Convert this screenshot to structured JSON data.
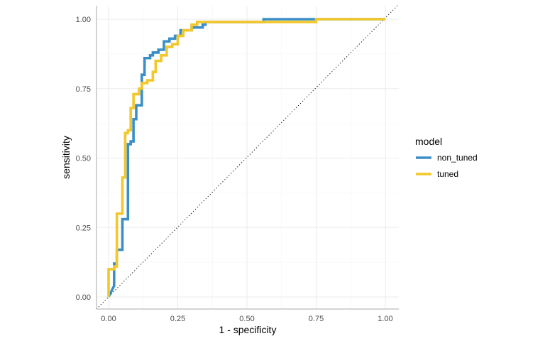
{
  "chart_data": {
    "type": "line",
    "title": "",
    "xlabel": "1 - specificity",
    "ylabel": "sensitivity",
    "xlim": [
      0,
      1
    ],
    "ylim": [
      0,
      1
    ],
    "x_ticks": [
      "0.00",
      "0.25",
      "0.50",
      "0.75",
      "1.00"
    ],
    "y_ticks": [
      "0.00",
      "0.25",
      "0.50",
      "0.75",
      "1.00"
    ],
    "grid": true,
    "legend": {
      "title": "model",
      "placement": "right"
    },
    "reference_line": {
      "type": "diagonal",
      "style": "dotted",
      "color": "#000000"
    },
    "series": [
      {
        "name": "non_tuned",
        "color": "#3A8FC8",
        "points": [
          [
            0,
            0
          ],
          [
            0.01,
            0.02
          ],
          [
            0.02,
            0.04
          ],
          [
            0.02,
            0.12
          ],
          [
            0.03,
            0.12
          ],
          [
            0.03,
            0.17
          ],
          [
            0.05,
            0.17
          ],
          [
            0.05,
            0.28
          ],
          [
            0.07,
            0.28
          ],
          [
            0.07,
            0.55
          ],
          [
            0.08,
            0.55
          ],
          [
            0.08,
            0.56
          ],
          [
            0.09,
            0.56
          ],
          [
            0.09,
            0.64
          ],
          [
            0.1,
            0.64
          ],
          [
            0.1,
            0.69
          ],
          [
            0.12,
            0.69
          ],
          [
            0.12,
            0.8
          ],
          [
            0.13,
            0.8
          ],
          [
            0.13,
            0.86
          ],
          [
            0.15,
            0.86
          ],
          [
            0.15,
            0.87
          ],
          [
            0.16,
            0.87
          ],
          [
            0.16,
            0.88
          ],
          [
            0.18,
            0.88
          ],
          [
            0.18,
            0.89
          ],
          [
            0.2,
            0.89
          ],
          [
            0.2,
            0.92
          ],
          [
            0.22,
            0.92
          ],
          [
            0.22,
            0.93
          ],
          [
            0.24,
            0.93
          ],
          [
            0.24,
            0.94
          ],
          [
            0.26,
            0.94
          ],
          [
            0.26,
            0.96
          ],
          [
            0.3,
            0.96
          ],
          [
            0.3,
            0.97
          ],
          [
            0.34,
            0.97
          ],
          [
            0.34,
            0.98
          ],
          [
            0.35,
            0.98
          ],
          [
            0.35,
            0.99
          ],
          [
            0.56,
            0.99
          ],
          [
            0.56,
            1.0
          ],
          [
            1.0,
            1.0
          ]
        ]
      },
      {
        "name": "tuned",
        "color": "#F2C72B",
        "points": [
          [
            0,
            0
          ],
          [
            0,
            0.1
          ],
          [
            0.02,
            0.1
          ],
          [
            0.02,
            0.11
          ],
          [
            0.03,
            0.11
          ],
          [
            0.03,
            0.3
          ],
          [
            0.05,
            0.3
          ],
          [
            0.05,
            0.43
          ],
          [
            0.06,
            0.43
          ],
          [
            0.06,
            0.59
          ],
          [
            0.07,
            0.59
          ],
          [
            0.07,
            0.6
          ],
          [
            0.08,
            0.6
          ],
          [
            0.08,
            0.68
          ],
          [
            0.09,
            0.68
          ],
          [
            0.09,
            0.73
          ],
          [
            0.11,
            0.73
          ],
          [
            0.11,
            0.75
          ],
          [
            0.12,
            0.75
          ],
          [
            0.12,
            0.77
          ],
          [
            0.14,
            0.77
          ],
          [
            0.14,
            0.78
          ],
          [
            0.16,
            0.78
          ],
          [
            0.16,
            0.81
          ],
          [
            0.17,
            0.81
          ],
          [
            0.17,
            0.85
          ],
          [
            0.19,
            0.85
          ],
          [
            0.19,
            0.87
          ],
          [
            0.21,
            0.87
          ],
          [
            0.21,
            0.9
          ],
          [
            0.23,
            0.9
          ],
          [
            0.23,
            0.91
          ],
          [
            0.25,
            0.91
          ],
          [
            0.25,
            0.94
          ],
          [
            0.27,
            0.94
          ],
          [
            0.27,
            0.96
          ],
          [
            0.3,
            0.96
          ],
          [
            0.3,
            0.98
          ],
          [
            0.32,
            0.98
          ],
          [
            0.32,
            0.99
          ],
          [
            0.75,
            0.99
          ],
          [
            0.75,
            1.0
          ],
          [
            1.0,
            1.0
          ]
        ]
      }
    ]
  }
}
